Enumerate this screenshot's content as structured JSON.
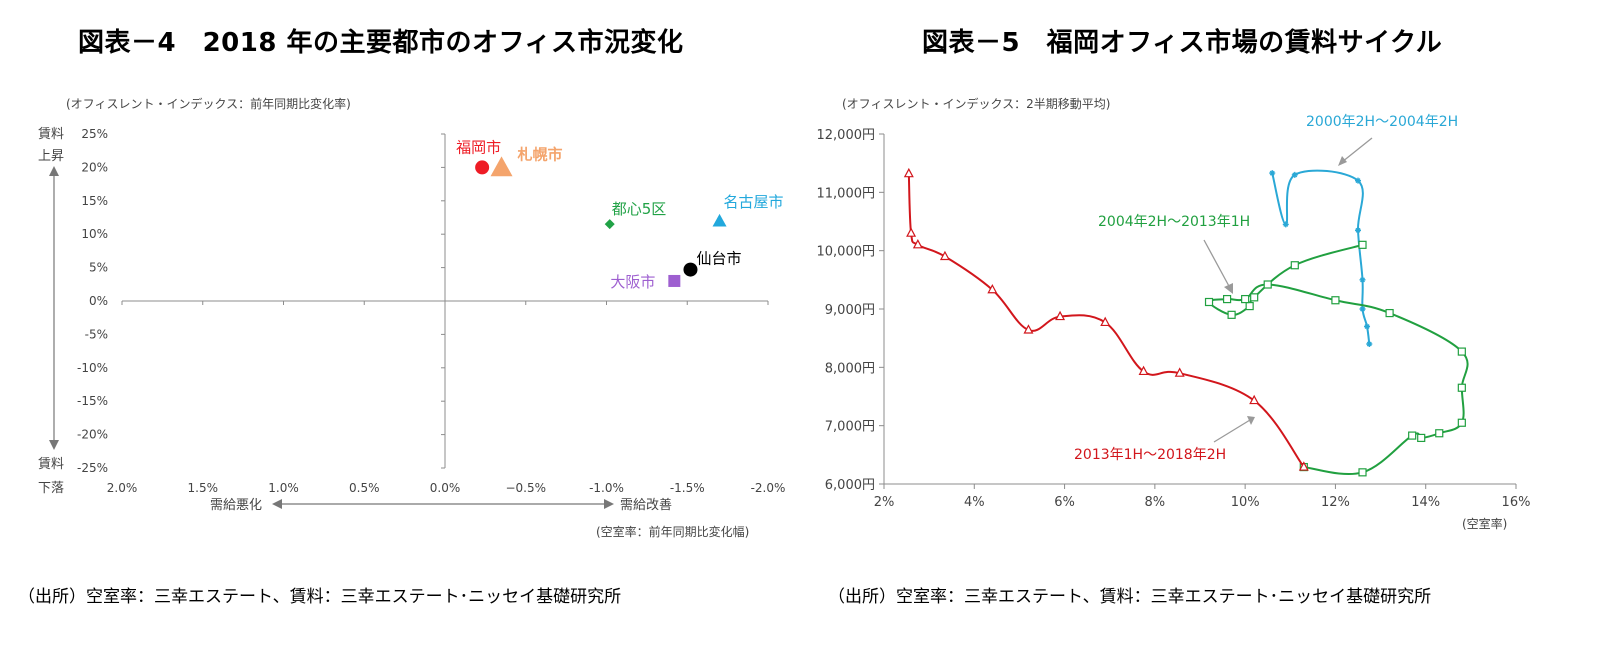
{
  "left_panel": {
    "title": "図表－4　2018 年の主要都市のオフィス市況変化",
    "source": "（出所）空室率：三幸エステート、賃料：三幸エステート･ニッセイ基礎研究所"
  },
  "right_panel": {
    "title": "図表－5　福岡オフィス市場の賃料サイクル",
    "source": "（出所）空室率：三幸エステート、賃料：三幸エステート･ニッセイ基礎研究所"
  },
  "chart_data": [
    {
      "type": "scatter",
      "title": "図表－4　2018 年の主要都市のオフィス市況変化",
      "ylabel": "(オフィスレント・インデックス：前年同期比変化率)",
      "xlabel": "(空室率：前年同期比変化幅)",
      "xlim": [
        2.0,
        -2.0
      ],
      "ylim": [
        -25,
        25
      ],
      "x_ticks": [
        2.0,
        1.5,
        1.0,
        0.5,
        0.0,
        -0.5,
        -1.0,
        -1.5,
        -2.0
      ],
      "x_tick_labels": [
        "2.0%",
        "1.5%",
        "1.0%",
        "0.5%",
        "0.0%",
        "−0.5%",
        "-1.0%",
        "-1.5%",
        "-2.0%"
      ],
      "y_ticks": [
        25,
        20,
        15,
        10,
        5,
        0,
        -5,
        -10,
        -15,
        -20,
        -25
      ],
      "y_tick_labels": [
        "25%",
        "20%",
        "15%",
        "10%",
        "5%",
        "0%",
        "-5%",
        "-10%",
        "-15%",
        "-20%",
        "-25%"
      ],
      "axis_annotations": {
        "up_top": "賃料",
        "up_bottom": "上昇",
        "down_top": "賃料",
        "down_bottom": "下落",
        "left": "需給悪化",
        "right": "需給改善"
      },
      "points": [
        {
          "name": "福岡市",
          "x": -0.23,
          "y": 20.0,
          "marker": "circle",
          "color": "#ee1c25"
        },
        {
          "name": "札幌市",
          "x": -0.35,
          "y": 20.0,
          "marker": "triangle",
          "color": "#f4a46c"
        },
        {
          "name": "都心5区",
          "x": -1.02,
          "y": 11.5,
          "marker": "diamond",
          "color": "#21a246"
        },
        {
          "name": "名古屋市",
          "x": -1.7,
          "y": 12.0,
          "marker": "triangle",
          "color": "#22a8dc"
        },
        {
          "name": "仙台市",
          "x": -1.52,
          "y": 4.7,
          "marker": "circle",
          "color": "#000000"
        },
        {
          "name": "大阪市",
          "x": -1.42,
          "y": 3.0,
          "marker": "square",
          "color": "#9e5fd0"
        }
      ]
    },
    {
      "type": "line",
      "title": "図表－5　福岡オフィス市場の賃料サイクル",
      "ylabel": "(オフィスレント・インデックス：2半期移動平均)",
      "xlabel": "(空室率)",
      "xlim": [
        2,
        16
      ],
      "ylim": [
        6000,
        12000
      ],
      "x_ticks": [
        2,
        4,
        6,
        8,
        10,
        12,
        14,
        16
      ],
      "x_tick_labels": [
        "2%",
        "4%",
        "6%",
        "8%",
        "10%",
        "12%",
        "14%",
        "16%"
      ],
      "y_ticks": [
        6000,
        7000,
        8000,
        9000,
        10000,
        11000,
        12000
      ],
      "y_tick_labels": [
        "6,000円",
        "7,000円",
        "8,000円",
        "9,000円",
        "10,000円",
        "11,000円",
        "12,000円"
      ],
      "series": [
        {
          "name": "2000年2H～2004年2H",
          "color": "#2aa8d6",
          "marker": "asterisk",
          "points": [
            [
              10.6,
              11330
            ],
            [
              10.9,
              10450
            ],
            [
              11.1,
              11300
            ],
            [
              12.5,
              11200
            ],
            [
              12.5,
              10350
            ],
            [
              12.6,
              9500
            ],
            [
              12.6,
              9000
            ],
            [
              12.7,
              8700
            ],
            [
              12.75,
              8400
            ]
          ]
        },
        {
          "name": "2004年2H～2013年1H",
          "color": "#21a040",
          "marker": "square",
          "points": [
            [
              12.6,
              10100
            ],
            [
              11.1,
              9750
            ],
            [
              10.2,
              9200
            ],
            [
              10.1,
              9050
            ],
            [
              9.7,
              8900
            ],
            [
              9.2,
              9120
            ],
            [
              9.6,
              9170
            ],
            [
              10.0,
              9170
            ],
            [
              10.5,
              9420
            ],
            [
              12.0,
              9150
            ],
            [
              13.2,
              8930
            ],
            [
              14.8,
              8270
            ],
            [
              14.8,
              7650
            ],
            [
              14.8,
              7050
            ],
            [
              14.3,
              6870
            ],
            [
              13.9,
              6790
            ],
            [
              13.7,
              6830
            ],
            [
              12.6,
              6200
            ],
            [
              11.3,
              6290
            ]
          ]
        },
        {
          "name": "2013年1H～2018年2H",
          "color": "#d2161c",
          "marker": "triangle",
          "points": [
            [
              11.3,
              6290
            ],
            [
              10.2,
              7430
            ],
            [
              8.55,
              7900
            ],
            [
              7.75,
              7930
            ],
            [
              6.9,
              8770
            ],
            [
              5.9,
              8870
            ],
            [
              5.2,
              8640
            ],
            [
              4.4,
              9330
            ],
            [
              3.35,
              9900
            ],
            [
              2.75,
              10100
            ],
            [
              2.6,
              10300
            ],
            [
              2.55,
              11320
            ]
          ]
        }
      ],
      "annotations": [
        {
          "text": "2000年2H～2004年2H",
          "color": "#2aa8d6"
        },
        {
          "text": "2004年2H～2013年1H",
          "color": "#21a040"
        },
        {
          "text": "2013年1H～2018年2H",
          "color": "#d2161c"
        }
      ]
    }
  ]
}
